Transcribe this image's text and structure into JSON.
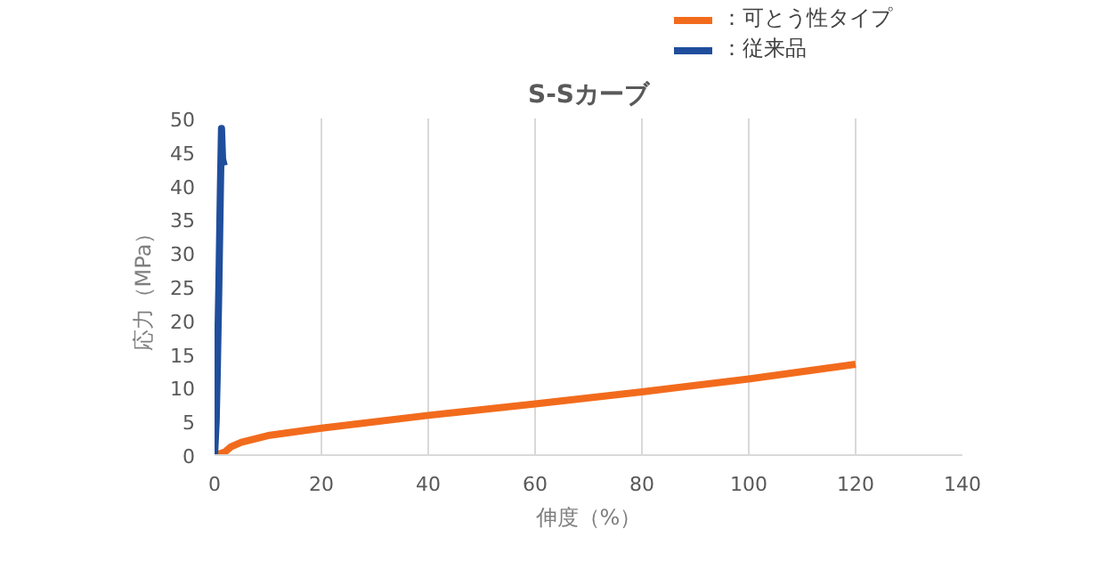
{
  "chart_data": {
    "type": "line",
    "title": "S-Sカーブ",
    "xlabel": "伸度（%）",
    "ylabel": "応力（MPa）",
    "xlim": [
      0,
      140
    ],
    "xticks": [
      0,
      20,
      40,
      60,
      80,
      100,
      120,
      140
    ],
    "ylim": [
      0,
      50
    ],
    "yticks": [
      0,
      5,
      10,
      15,
      20,
      25,
      30,
      35,
      40,
      45,
      50
    ],
    "grid": "x",
    "legend": "top right",
    "line_style": "solid",
    "series": [
      {
        "name": "：可とう性タイプ",
        "color": "#f26b1d",
        "x": [
          0,
          1,
          2,
          3,
          5,
          10,
          20,
          40,
          60,
          80,
          100,
          120
        ],
        "values": [
          0,
          0.2,
          0.5,
          1.2,
          1.9,
          2.9,
          4.0,
          5.9,
          7.6,
          9.4,
          11.3,
          13.5
        ]
      },
      {
        "name": "：従来品",
        "color": "#1f4e9c",
        "x": [
          0,
          0.3,
          0.5,
          0.8,
          1.1,
          1.3,
          1.5,
          1.8
        ],
        "values": [
          0,
          5,
          12,
          25,
          40,
          48.5,
          44,
          43
        ]
      }
    ]
  }
}
